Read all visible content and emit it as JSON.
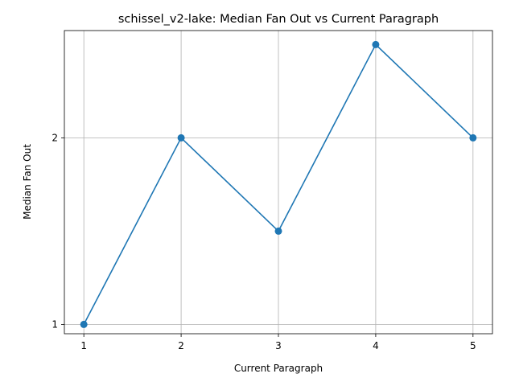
{
  "chart_data": {
    "type": "line",
    "title": "schissel_v2-lake: Median Fan Out vs Current Paragraph",
    "xlabel": "Current Paragraph",
    "ylabel": "Median Fan Out",
    "x": [
      1,
      2,
      3,
      4,
      5
    ],
    "y": [
      1,
      2,
      1.5,
      2.5,
      2
    ],
    "x_ticks": [
      "1",
      "2",
      "3",
      "4",
      "5"
    ],
    "y_ticks": [
      1,
      2
    ],
    "y_tick_labels": [
      "1",
      "2"
    ],
    "xlim": [
      0.8,
      5.2
    ],
    "ylim": [
      0.95,
      2.575
    ],
    "grid": true,
    "series_color": "#1f77b4",
    "marker": "circle"
  }
}
